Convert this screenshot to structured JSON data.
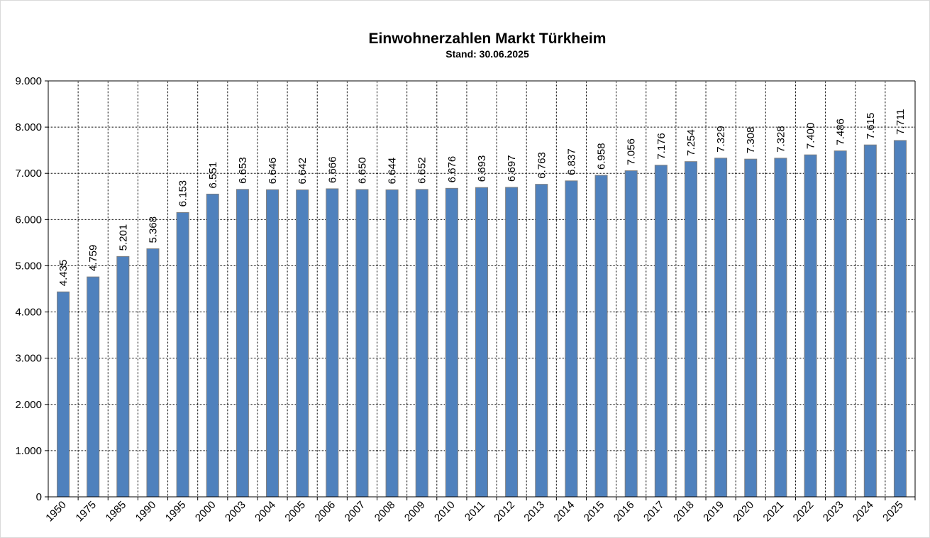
{
  "chart_data": {
    "type": "bar",
    "title": "Einwohnerzahlen Markt Türkheim",
    "subtitle": "Stand: 30.06.2025",
    "categories": [
      "1950",
      "1975",
      "1985",
      "1990",
      "1995",
      "2000",
      "2003",
      "2004",
      "2005",
      "2006",
      "2007",
      "2008",
      "2009",
      "2010",
      "2011",
      "2012",
      "2013",
      "2014",
      "2015",
      "2016",
      "2017",
      "2018",
      "2019",
      "2020",
      "2021",
      "2022",
      "2023",
      "2024",
      "2025"
    ],
    "values": [
      4435,
      4759,
      5201,
      5368,
      6153,
      6551,
      6653,
      6646,
      6642,
      6666,
      6650,
      6644,
      6652,
      6676,
      6693,
      6697,
      6763,
      6837,
      6958,
      7056,
      7176,
      7254,
      7329,
      7308,
      7328,
      7400,
      7486,
      7615,
      7711
    ],
    "value_labels": [
      "4.435",
      "4.759",
      "5.201",
      "5.368",
      "6.153",
      "6.551",
      "6.653",
      "6.646",
      "6.642",
      "6.666",
      "6.650",
      "6.644",
      "6.652",
      "6.676",
      "6.693",
      "6.697",
      "6.763",
      "6.837",
      "6.958",
      "7.056",
      "7.176",
      "7.254",
      "7.329",
      "7.308",
      "7.328",
      "7.400",
      "7.486",
      "7.615",
      "7.711"
    ],
    "y_ticks": [
      "0",
      "1.000",
      "2.000",
      "3.000",
      "4.000",
      "5.000",
      "6.000",
      "7.000",
      "8.000",
      "9.000"
    ],
    "ylim": [
      0,
      9000
    ],
    "grid": true,
    "bar_color": "#4f81bd",
    "xlabel": "",
    "ylabel": ""
  }
}
